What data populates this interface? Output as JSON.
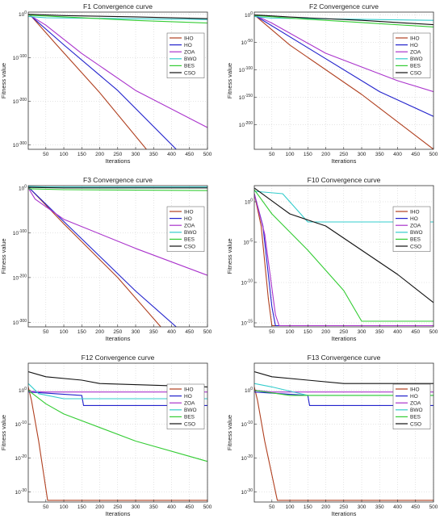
{
  "figure": {
    "background": "#ffffff",
    "axes_color": "#333333",
    "grid_color": "#bbbbbb"
  },
  "chart_data": [
    {
      "type": "line",
      "title": "F1 Convergence curve",
      "xlabel": "Iterations",
      "ylabel": "Fitness value",
      "yscale": "log",
      "xlim": [
        1,
        500
      ],
      "ylim_exp": [
        -310,
        5
      ],
      "xticks": [
        50,
        100,
        150,
        200,
        250,
        300,
        350,
        400,
        450,
        500
      ],
      "yticks": [
        {
          "v": 0,
          "label": "10^0"
        },
        {
          "v": -100,
          "label": "10^-100"
        },
        {
          "v": -200,
          "label": "10^-200"
        },
        {
          "v": -300,
          "label": "10^-300"
        }
      ],
      "legend": "top-right",
      "series": [
        {
          "name": "IHO",
          "color": "#b04020",
          "x": [
            1,
            10,
            80,
            200,
            330
          ],
          "y": [
            0,
            -5,
            -70,
            -180,
            -310
          ]
        },
        {
          "name": "HO",
          "color": "#2222cc",
          "x": [
            1,
            10,
            100,
            250,
            413
          ],
          "y": [
            0,
            -5,
            -70,
            -175,
            -310
          ]
        },
        {
          "name": "ZOA",
          "color": "#aa33cc",
          "x": [
            1,
            50,
            150,
            300,
            500
          ],
          "y": [
            0,
            -25,
            -90,
            -175,
            -260
          ]
        },
        {
          "name": "BWO",
          "color": "#33cccc",
          "x": [
            1,
            50,
            500
          ],
          "y": [
            -5,
            -8,
            -12
          ]
        },
        {
          "name": "BES",
          "color": "#33cc33",
          "x": [
            1,
            100,
            300,
            500
          ],
          "y": [
            -2,
            -6,
            -14,
            -20
          ]
        },
        {
          "name": "CSO",
          "color": "#111111",
          "x": [
            1,
            100,
            300,
            500
          ],
          "y": [
            0,
            -3,
            -6,
            -10
          ]
        }
      ]
    },
    {
      "type": "line",
      "title": "F2 Convergence curve",
      "xlabel": "Iterations",
      "ylabel": "Fitness value",
      "yscale": "log",
      "xlim": [
        1,
        500
      ],
      "ylim_exp": [
        -245,
        5
      ],
      "xticks": [
        50,
        100,
        150,
        200,
        250,
        300,
        350,
        400,
        450,
        500
      ],
      "yticks": [
        {
          "v": 0,
          "label": "10^0"
        },
        {
          "v": -50,
          "label": "10^-50"
        },
        {
          "v": -100,
          "label": "10^-100"
        },
        {
          "v": -150,
          "label": "10^-150"
        },
        {
          "v": -200,
          "label": "10^-200"
        }
      ],
      "legend": "top-right",
      "series": [
        {
          "name": "IHO",
          "color": "#b04020",
          "x": [
            1,
            10,
            100,
            300,
            500
          ],
          "y": [
            0,
            -5,
            -55,
            -145,
            -245
          ]
        },
        {
          "name": "HO",
          "color": "#2222cc",
          "x": [
            1,
            10,
            150,
            350,
            500
          ],
          "y": [
            0,
            -4,
            -60,
            -140,
            -185
          ]
        },
        {
          "name": "ZOA",
          "color": "#aa33cc",
          "x": [
            1,
            50,
            200,
            400,
            500
          ],
          "y": [
            0,
            -15,
            -70,
            -120,
            -140
          ]
        },
        {
          "name": "BWO",
          "color": "#33cccc",
          "x": [
            1,
            50,
            500
          ],
          "y": [
            -3,
            -6,
            -10
          ]
        },
        {
          "name": "BES",
          "color": "#33cc33",
          "x": [
            1,
            100,
            300,
            500
          ],
          "y": [
            -1,
            -6,
            -14,
            -22
          ]
        },
        {
          "name": "CSO",
          "color": "#111111",
          "x": [
            1,
            100,
            300,
            500
          ],
          "y": [
            0,
            -4,
            -10,
            -18
          ]
        }
      ]
    },
    {
      "type": "line",
      "title": "F3 Convergence curve",
      "xlabel": "Iterations",
      "ylabel": "Fitness value",
      "yscale": "log",
      "xlim": [
        1,
        500
      ],
      "ylim_exp": [
        -310,
        5
      ],
      "xticks": [
        50,
        100,
        150,
        200,
        250,
        300,
        350,
        400,
        450,
        500
      ],
      "yticks": [
        {
          "v": 0,
          "label": "10^0"
        },
        {
          "v": -100,
          "label": "10^-100"
        },
        {
          "v": -200,
          "label": "10^-200"
        },
        {
          "v": -300,
          "label": "10^-300"
        }
      ],
      "legend": "top-right",
      "series": [
        {
          "name": "IHO",
          "color": "#b04020",
          "x": [
            1,
            10,
            100,
            250,
            370
          ],
          "y": [
            0,
            -5,
            -80,
            -200,
            -310
          ]
        },
        {
          "name": "HO",
          "color": "#2222cc",
          "x": [
            1,
            10,
            100,
            300,
            413
          ],
          "y": [
            0,
            -5,
            -75,
            -230,
            -310
          ]
        },
        {
          "name": "ZOA",
          "color": "#aa33cc",
          "x": [
            1,
            20,
            100,
            300,
            500
          ],
          "y": [
            0,
            -25,
            -70,
            -135,
            -195
          ]
        },
        {
          "name": "BWO",
          "color": "#33cccc",
          "x": [
            1,
            50,
            500
          ],
          "y": [
            3,
            2,
            2
          ]
        },
        {
          "name": "BES",
          "color": "#33cc33",
          "x": [
            1,
            100,
            500
          ],
          "y": [
            -2,
            -4,
            -6
          ]
        },
        {
          "name": "CSO",
          "color": "#111111",
          "x": [
            1,
            100,
            500
          ],
          "y": [
            1,
            0,
            0
          ]
        }
      ]
    },
    {
      "type": "line",
      "title": "F10 Convergence curve",
      "xlabel": "Iterations",
      "ylabel": "Fitness value",
      "yscale": "log",
      "xlim": [
        1,
        500
      ],
      "ylim_exp": [
        -15.5,
        2
      ],
      "xticks": [
        50,
        100,
        150,
        200,
        250,
        300,
        350,
        400,
        450,
        500
      ],
      "yticks": [
        {
          "v": 0,
          "label": "10^0"
        },
        {
          "v": -5,
          "label": "10^-5"
        },
        {
          "v": -10,
          "label": "10^-10"
        },
        {
          "v": -15,
          "label": "10^-15"
        }
      ],
      "legend": "top-right",
      "series": [
        {
          "name": "IHO",
          "color": "#b04020",
          "x": [
            1,
            20,
            40,
            50,
            500
          ],
          "y": [
            1,
            -3,
            -12,
            -15.35,
            -15.35
          ]
        },
        {
          "name": "HO",
          "color": "#2222cc",
          "x": [
            1,
            25,
            50,
            60,
            500
          ],
          "y": [
            1,
            -3,
            -13,
            -15.35,
            -15.35
          ]
        },
        {
          "name": "ZOA",
          "color": "#aa33cc",
          "x": [
            1,
            30,
            60,
            70,
            500
          ],
          "y": [
            1,
            -4,
            -14,
            -15.35,
            -15.35
          ]
        },
        {
          "name": "BWO",
          "color": "#33cccc",
          "x": [
            1,
            80,
            150,
            500
          ],
          "y": [
            1.3,
            1.0,
            -2.5,
            -2.5
          ]
        },
        {
          "name": "BES",
          "color": "#33cc33",
          "x": [
            1,
            50,
            150,
            250,
            300,
            500
          ],
          "y": [
            1.5,
            -1.5,
            -6,
            -11,
            -14.8,
            -14.8
          ]
        },
        {
          "name": "CSO",
          "color": "#111111",
          "x": [
            1,
            100,
            200,
            300,
            400,
            500
          ],
          "y": [
            1.7,
            -1.5,
            -3,
            -6,
            -9,
            -12.5
          ]
        }
      ]
    },
    {
      "type": "line",
      "title": "F12 Convergence curve",
      "xlabel": "Iterations",
      "ylabel": "Fitness value",
      "yscale": "log",
      "xlim": [
        1,
        500
      ],
      "ylim_exp": [
        -33,
        8
      ],
      "xticks": [
        50,
        100,
        150,
        200,
        250,
        300,
        350,
        400,
        450,
        500
      ],
      "yticks": [
        {
          "v": 0,
          "label": "10^0"
        },
        {
          "v": -10,
          "label": "10^-10"
        },
        {
          "v": -20,
          "label": "10^-20"
        },
        {
          "v": -30,
          "label": "10^-30"
        }
      ],
      "legend": "top-right",
      "series": [
        {
          "name": "IHO",
          "color": "#b04020",
          "x": [
            1,
            10,
            30,
            55,
            500
          ],
          "y": [
            1,
            -3,
            -15,
            -32.5,
            -32.5
          ]
        },
        {
          "name": "HO",
          "color": "#2222cc",
          "x": [
            1,
            150,
            155,
            500
          ],
          "y": [
            -0.5,
            -1.5,
            -4.5,
            -4.5
          ]
        },
        {
          "name": "ZOA",
          "color": "#aa33cc",
          "x": [
            1,
            50,
            500
          ],
          "y": [
            -0.3,
            -0.5,
            -0.5
          ]
        },
        {
          "name": "BWO",
          "color": "#33cccc",
          "x": [
            1,
            30,
            100,
            500
          ],
          "y": [
            2,
            -1,
            -2.5,
            -2.5
          ]
        },
        {
          "name": "BES",
          "color": "#33cc33",
          "x": [
            1,
            50,
            100,
            300,
            500
          ],
          "y": [
            0,
            -4,
            -7,
            -15,
            -21
          ]
        },
        {
          "name": "CSO",
          "color": "#111111",
          "x": [
            1,
            50,
            150,
            200,
            500
          ],
          "y": [
            5.5,
            4,
            3,
            2,
            1
          ]
        }
      ]
    },
    {
      "type": "line",
      "title": "F13 Convergence curve",
      "xlabel": "Iterations",
      "ylabel": "Fitness value",
      "yscale": "log",
      "xlim": [
        1,
        500
      ],
      "ylim_exp": [
        -33,
        8
      ],
      "xticks": [
        50,
        100,
        150,
        200,
        250,
        300,
        350,
        400,
        450,
        500
      ],
      "yticks": [
        {
          "v": 0,
          "label": "10^0"
        },
        {
          "v": -10,
          "label": "10^-10"
        },
        {
          "v": -20,
          "label": "10^-20"
        },
        {
          "v": -30,
          "label": "10^-30"
        }
      ],
      "legend": "top-right",
      "series": [
        {
          "name": "IHO",
          "color": "#b04020",
          "x": [
            1,
            10,
            30,
            65,
            500
          ],
          "y": [
            1,
            -3,
            -15,
            -32.5,
            -32.5
          ]
        },
        {
          "name": "HO",
          "color": "#2222cc",
          "x": [
            1,
            150,
            155,
            500
          ],
          "y": [
            -0.5,
            -1.5,
            -4.5,
            -4.5
          ]
        },
        {
          "name": "ZOA",
          "color": "#aa33cc",
          "x": [
            1,
            50,
            500
          ],
          "y": [
            0,
            -0.5,
            -0.5
          ]
        },
        {
          "name": "BWO",
          "color": "#33cccc",
          "x": [
            1,
            50,
            150,
            500
          ],
          "y": [
            2,
            1,
            -1.5,
            -1.5
          ]
        },
        {
          "name": "BES",
          "color": "#33cc33",
          "x": [
            1,
            100,
            500
          ],
          "y": [
            0,
            -1.5,
            -1.5
          ]
        },
        {
          "name": "CSO",
          "color": "#111111",
          "x": [
            1,
            50,
            150,
            250,
            500
          ],
          "y": [
            5.5,
            4,
            3,
            2,
            2
          ]
        }
      ]
    }
  ]
}
